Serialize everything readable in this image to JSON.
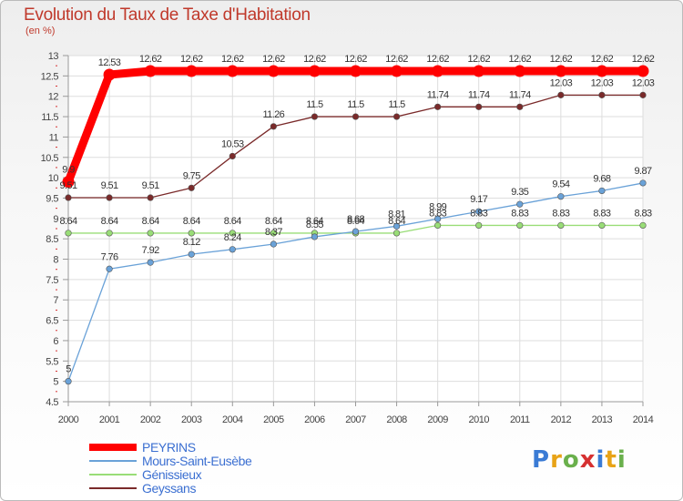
{
  "header": {
    "title": "Evolution du Taux de Taxe d'Habitation",
    "subtitle": "(en %)"
  },
  "brand": {
    "letters": [
      "P",
      "r",
      "o",
      "x",
      "i",
      "t",
      "i"
    ],
    "colors": [
      "#3a7bd5",
      "#e8a317",
      "#6ab04c",
      "#d63031",
      "#3a7bd5",
      "#e8a317",
      "#6ab04c"
    ]
  },
  "chart_data": {
    "type": "line",
    "x": [
      2000,
      2001,
      2002,
      2003,
      2004,
      2005,
      2006,
      2007,
      2008,
      2009,
      2010,
      2011,
      2012,
      2013,
      2014
    ],
    "ylim": [
      4.5,
      13
    ],
    "yticks": [
      4.5,
      5,
      5.5,
      6,
      6.5,
      7,
      7.5,
      8,
      8.5,
      9,
      9.5,
      10,
      10.5,
      11,
      11.5,
      12,
      12.5,
      13
    ],
    "grid": true,
    "legend_position": "bottom-left",
    "series": [
      {
        "name": "PEYRINS",
        "color": "#ff0000",
        "values": [
          9.9,
          12.53,
          12.62,
          12.62,
          12.62,
          12.62,
          12.62,
          12.62,
          12.62,
          12.62,
          12.62,
          12.62,
          12.62,
          12.62,
          12.62
        ],
        "labels": [
          "9.9",
          "12.53",
          "12.62",
          "12.62",
          "12.62",
          "12.62",
          "12.62",
          "12.62",
          "12.62",
          "12.62",
          "12.62",
          "12.62",
          "12.62",
          "12.62",
          "12.62"
        ]
      },
      {
        "name": "Mours-Saint-Eusèbe",
        "color": "#6aa2d8",
        "values": [
          5,
          7.76,
          7.92,
          8.12,
          8.24,
          8.37,
          8.55,
          8.68,
          8.81,
          8.99,
          9.17,
          9.35,
          9.54,
          9.68,
          9.87
        ],
        "labels": [
          "5",
          "7.76",
          "7.92",
          "8.12",
          "8.24",
          "8.37",
          "8.55",
          "8.68",
          "8.81",
          "8.99",
          "9.17",
          "9.35",
          "9.54",
          "9.68",
          "9.87"
        ]
      },
      {
        "name": "Génissieux",
        "color": "#99dd77",
        "values": [
          8.64,
          8.64,
          8.64,
          8.64,
          8.64,
          8.64,
          8.64,
          8.64,
          8.64,
          8.83,
          8.83,
          8.83,
          8.83,
          8.83,
          8.83
        ],
        "labels": [
          "8.64",
          "8.64",
          "8.64",
          "8.64",
          "8.64",
          "8.64",
          "8.64",
          "8.64",
          "8.64",
          "8.83",
          "8.83",
          "8.83",
          "8.83",
          "8.83",
          "8.83"
        ]
      },
      {
        "name": "Geyssans",
        "color": "#7a2a2a",
        "values": [
          9.51,
          9.51,
          9.51,
          9.75,
          10.53,
          11.26,
          11.5,
          11.5,
          11.5,
          11.74,
          11.74,
          11.74,
          12.03,
          12.03,
          12.03
        ],
        "labels": [
          "9.51",
          "9.51",
          "9.51",
          "9.75",
          "10.53",
          "11.26",
          "11.5",
          "11.5",
          "11.5",
          "11.74",
          "11.74",
          "11.74",
          "12.03",
          "12.03",
          "12.03"
        ]
      }
    ]
  }
}
